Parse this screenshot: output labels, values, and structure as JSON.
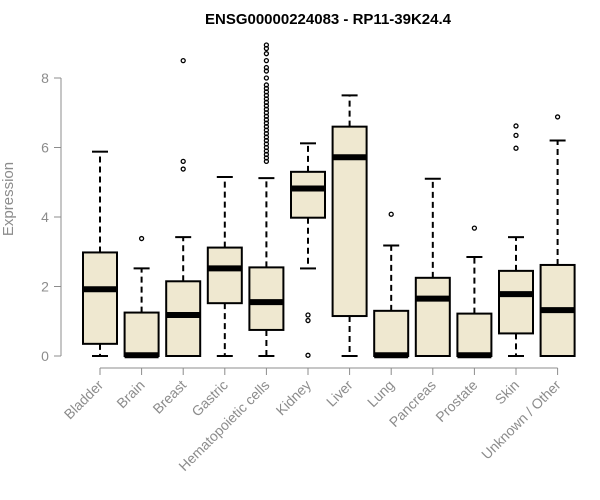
{
  "chart_data": {
    "type": "boxplot",
    "title": "ENSG00000224083 - RP11-39K24.4",
    "ylabel": "Expression",
    "xlabel": "",
    "ylim": [
      0,
      9
    ],
    "yticks": [
      0,
      2,
      4,
      6,
      8
    ],
    "grid": false,
    "legend": "none",
    "colors": {
      "box_fill": "#efe8d0",
      "box_stroke": "#000000",
      "axis": "#8c8c8c",
      "title": "#000000"
    },
    "categories": [
      "Bladder",
      "Brain",
      "Breast",
      "Gastric",
      "Hematopoietic cells",
      "Kidney",
      "Liver",
      "Lung",
      "Pancreas",
      "Prostate",
      "Skin",
      "Unknown / Other"
    ],
    "boxes": [
      {
        "name": "Bladder",
        "whisker_low": 0,
        "q1": 0.35,
        "median": 1.92,
        "q3": 2.98,
        "whisker_high": 5.88,
        "outliers": []
      },
      {
        "name": "Brain",
        "whisker_low": 0,
        "q1": 0,
        "median": 0.02,
        "q3": 1.25,
        "whisker_high": 2.52,
        "outliers": [
          3.38
        ]
      },
      {
        "name": "Breast",
        "whisker_low": 0,
        "q1": 0,
        "median": 1.18,
        "q3": 2.15,
        "whisker_high": 3.42,
        "outliers": [
          5.38,
          5.6,
          8.5
        ]
      },
      {
        "name": "Gastric",
        "whisker_low": 0,
        "q1": 1.52,
        "median": 2.52,
        "q3": 3.12,
        "whisker_high": 5.15,
        "outliers": []
      },
      {
        "name": "Hematopoietic cells",
        "whisker_low": 0,
        "q1": 0.75,
        "median": 1.55,
        "q3": 2.55,
        "whisker_high": 5.12,
        "outliers": [
          5.6,
          5.7,
          5.8,
          5.9,
          6.0,
          6.1,
          6.2,
          6.3,
          6.4,
          6.5,
          6.6,
          6.7,
          6.8,
          6.9,
          7.0,
          7.1,
          7.2,
          7.3,
          7.4,
          7.5,
          7.6,
          7.7,
          7.8,
          8.0,
          8.2,
          8.3,
          8.5,
          8.7,
          8.85,
          8.95
        ]
      },
      {
        "name": "Kidney",
        "whisker_low": 2.52,
        "q1": 3.98,
        "median": 4.82,
        "q3": 5.3,
        "whisker_high": 6.12,
        "outliers": [
          0.02,
          1.02,
          1.18
        ]
      },
      {
        "name": "Liver",
        "whisker_low": 0,
        "q1": 1.15,
        "median": 5.72,
        "q3": 6.6,
        "whisker_high": 7.5,
        "outliers": []
      },
      {
        "name": "Lung",
        "whisker_low": 0,
        "q1": 0,
        "median": 0.02,
        "q3": 1.3,
        "whisker_high": 3.18,
        "outliers": [
          4.08
        ]
      },
      {
        "name": "Pancreas",
        "whisker_low": 0,
        "q1": 0,
        "median": 1.65,
        "q3": 2.25,
        "whisker_high": 5.1,
        "outliers": []
      },
      {
        "name": "Prostate",
        "whisker_low": 0,
        "q1": 0,
        "median": 0.02,
        "q3": 1.22,
        "whisker_high": 2.85,
        "outliers": [
          3.68
        ]
      },
      {
        "name": "Skin",
        "whisker_low": 0,
        "q1": 0.65,
        "median": 1.78,
        "q3": 2.45,
        "whisker_high": 3.42,
        "outliers": [
          5.98,
          6.35,
          6.62
        ]
      },
      {
        "name": "Unknown / Other",
        "whisker_low": 0,
        "q1": 0,
        "median": 1.32,
        "q3": 2.62,
        "whisker_high": 6.2,
        "outliers": [
          6.88
        ]
      }
    ]
  }
}
